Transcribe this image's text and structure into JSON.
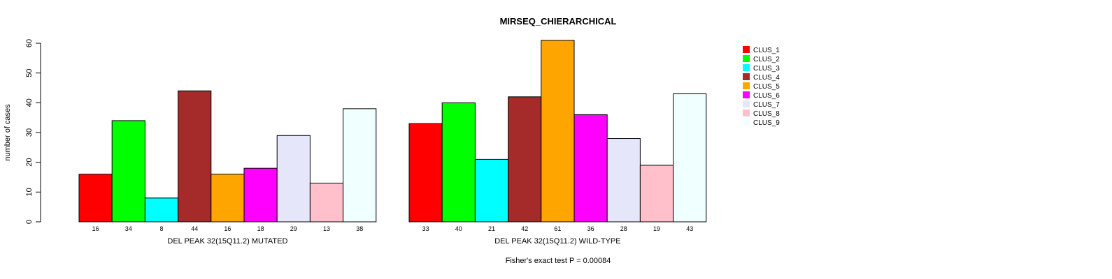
{
  "chart_data": {
    "type": "bar",
    "title": "MIRSEQ_CHIERARCHICAL",
    "ylabel": "number of cases",
    "ylim": [
      0,
      60
    ],
    "yticks": [
      0,
      10,
      20,
      30,
      40,
      50,
      60
    ],
    "footnote": "Fisher's exact test P = 0.00084",
    "legend_position": "right",
    "categories": [
      "CLUS_1",
      "CLUS_2",
      "CLUS_3",
      "CLUS_4",
      "CLUS_5",
      "CLUS_6",
      "CLUS_7",
      "CLUS_8",
      "CLUS_9"
    ],
    "colors": [
      "#ff0000",
      "#00ff00",
      "#00ffff",
      "#a52a2a",
      "#ffa500",
      "#ff00ff",
      "#e6e6fa",
      "#ffc0cb",
      "#f0ffff"
    ],
    "groups": [
      {
        "label": "DEL PEAK 32(15Q11.2) MUTATED",
        "values": [
          16,
          34,
          8,
          44,
          16,
          18,
          29,
          13,
          38
        ]
      },
      {
        "label": "DEL PEAK 32(15Q11.2) WILD-TYPE",
        "values": [
          33,
          40,
          21,
          42,
          61,
          36,
          28,
          19,
          43
        ]
      }
    ]
  }
}
